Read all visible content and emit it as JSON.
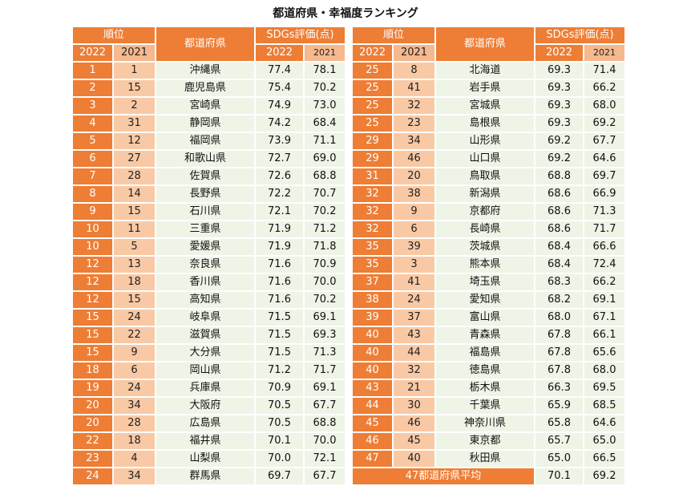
{
  "title": "都道府県・幸福度ランキング",
  "headers": {
    "rank": "順位",
    "pref": "都道府県",
    "score": "SDGs評価(点)",
    "y2022": "2022",
    "y2021": "2021"
  },
  "left_rows": [
    {
      "r22": "1",
      "r21": "1",
      "pref": "沖縄県",
      "s22": "77.4",
      "s21": "78.1"
    },
    {
      "r22": "2",
      "r21": "15",
      "pref": "鹿児島県",
      "s22": "75.4",
      "s21": "70.2"
    },
    {
      "r22": "3",
      "r21": "2",
      "pref": "宮崎県",
      "s22": "74.9",
      "s21": "73.0"
    },
    {
      "r22": "4",
      "r21": "31",
      "pref": "静岡県",
      "s22": "74.2",
      "s21": "68.4"
    },
    {
      "r22": "5",
      "r21": "12",
      "pref": "福岡県",
      "s22": "73.9",
      "s21": "71.1"
    },
    {
      "r22": "6",
      "r21": "27",
      "pref": "和歌山県",
      "s22": "72.7",
      "s21": "69.0"
    },
    {
      "r22": "7",
      "r21": "28",
      "pref": "佐賀県",
      "s22": "72.6",
      "s21": "68.8"
    },
    {
      "r22": "8",
      "r21": "14",
      "pref": "長野県",
      "s22": "72.2",
      "s21": "70.7"
    },
    {
      "r22": "9",
      "r21": "15",
      "pref": "石川県",
      "s22": "72.1",
      "s21": "70.2"
    },
    {
      "r22": "10",
      "r21": "11",
      "pref": "三重県",
      "s22": "71.9",
      "s21": "71.2"
    },
    {
      "r22": "10",
      "r21": "5",
      "pref": "愛媛県",
      "s22": "71.9",
      "s21": "71.8"
    },
    {
      "r22": "12",
      "r21": "13",
      "pref": "奈良県",
      "s22": "71.6",
      "s21": "70.9"
    },
    {
      "r22": "12",
      "r21": "18",
      "pref": "香川県",
      "s22": "71.6",
      "s21": "70.0"
    },
    {
      "r22": "12",
      "r21": "15",
      "pref": "高知県",
      "s22": "71.6",
      "s21": "70.2"
    },
    {
      "r22": "15",
      "r21": "24",
      "pref": "岐阜県",
      "s22": "71.5",
      "s21": "69.1"
    },
    {
      "r22": "15",
      "r21": "22",
      "pref": "滋賀県",
      "s22": "71.5",
      "s21": "69.3"
    },
    {
      "r22": "15",
      "r21": "9",
      "pref": "大分県",
      "s22": "71.5",
      "s21": "71.3"
    },
    {
      "r22": "18",
      "r21": "6",
      "pref": "岡山県",
      "s22": "71.2",
      "s21": "71.7"
    },
    {
      "r22": "19",
      "r21": "24",
      "pref": "兵庫県",
      "s22": "70.9",
      "s21": "69.1"
    },
    {
      "r22": "20",
      "r21": "34",
      "pref": "大阪府",
      "s22": "70.5",
      "s21": "67.7"
    },
    {
      "r22": "20",
      "r21": "28",
      "pref": "広島県",
      "s22": "70.5",
      "s21": "68.8"
    },
    {
      "r22": "22",
      "r21": "18",
      "pref": "福井県",
      "s22": "70.1",
      "s21": "70.0"
    },
    {
      "r22": "23",
      "r21": "4",
      "pref": "山梨県",
      "s22": "70.0",
      "s21": "72.1"
    },
    {
      "r22": "24",
      "r21": "34",
      "pref": "群馬県",
      "s22": "69.7",
      "s21": "67.7"
    }
  ],
  "right_rows": [
    {
      "r22": "25",
      "r21": "8",
      "pref": "北海道",
      "s22": "69.3",
      "s21": "71.4"
    },
    {
      "r22": "25",
      "r21": "41",
      "pref": "岩手県",
      "s22": "69.3",
      "s21": "66.2"
    },
    {
      "r22": "25",
      "r21": "32",
      "pref": "宮城県",
      "s22": "69.3",
      "s21": "68.0"
    },
    {
      "r22": "25",
      "r21": "23",
      "pref": "島根県",
      "s22": "69.3",
      "s21": "69.2"
    },
    {
      "r22": "29",
      "r21": "34",
      "pref": "山形県",
      "s22": "69.2",
      "s21": "67.7"
    },
    {
      "r22": "29",
      "r21": "46",
      "pref": "山口県",
      "s22": "69.2",
      "s21": "64.6"
    },
    {
      "r22": "31",
      "r21": "20",
      "pref": "鳥取県",
      "s22": "68.8",
      "s21": "69.7"
    },
    {
      "r22": "32",
      "r21": "38",
      "pref": "新潟県",
      "s22": "68.6",
      "s21": "66.9"
    },
    {
      "r22": "32",
      "r21": "9",
      "pref": "京都府",
      "s22": "68.6",
      "s21": "71.3"
    },
    {
      "r22": "32",
      "r21": "6",
      "pref": "長崎県",
      "s22": "68.6",
      "s21": "71.7"
    },
    {
      "r22": "35",
      "r21": "39",
      "pref": "茨城県",
      "s22": "68.4",
      "s21": "66.6"
    },
    {
      "r22": "35",
      "r21": "3",
      "pref": "熊本県",
      "s22": "68.4",
      "s21": "72.4"
    },
    {
      "r22": "37",
      "r21": "41",
      "pref": "埼玉県",
      "s22": "68.3",
      "s21": "66.2"
    },
    {
      "r22": "38",
      "r21": "24",
      "pref": "愛知県",
      "s22": "68.2",
      "s21": "69.1"
    },
    {
      "r22": "39",
      "r21": "37",
      "pref": "富山県",
      "s22": "68.0",
      "s21": "67.1"
    },
    {
      "r22": "40",
      "r21": "43",
      "pref": "青森県",
      "s22": "67.8",
      "s21": "66.1"
    },
    {
      "r22": "40",
      "r21": "44",
      "pref": "福島県",
      "s22": "67.8",
      "s21": "65.6"
    },
    {
      "r22": "40",
      "r21": "32",
      "pref": "徳島県",
      "s22": "67.8",
      "s21": "68.0"
    },
    {
      "r22": "43",
      "r21": "21",
      "pref": "栃木県",
      "s22": "66.3",
      "s21": "69.5"
    },
    {
      "r22": "44",
      "r21": "30",
      "pref": "千葉県",
      "s22": "65.9",
      "s21": "68.5"
    },
    {
      "r22": "45",
      "r21": "46",
      "pref": "神奈川県",
      "s22": "65.8",
      "s21": "64.6"
    },
    {
      "r22": "46",
      "r21": "45",
      "pref": "東京都",
      "s22": "65.7",
      "s21": "65.0"
    },
    {
      "r22": "47",
      "r21": "40",
      "pref": "秋田県",
      "s22": "65.0",
      "s21": "66.5"
    }
  ],
  "average": {
    "label": "47都道府県平均",
    "s22": "70.1",
    "s21": "69.2"
  },
  "colors": {
    "accent": "#ee7d35",
    "accent_light": "#f9c9a5",
    "cell_bg": "#eef4e6"
  }
}
